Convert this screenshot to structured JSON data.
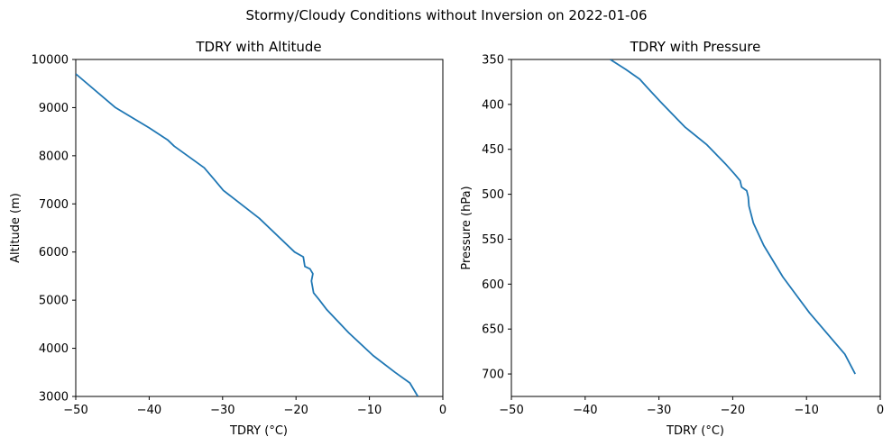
{
  "figure": {
    "suptitle": "Stormy/Cloudy Conditions without Inversion on 2022-01-06"
  },
  "colors": {
    "line": "#1f77b4",
    "axis": "#000000",
    "background": "#ffffff"
  },
  "chart_data": [
    {
      "type": "line",
      "title": "TDRY with Altitude",
      "xlabel": "TDRY (°C)",
      "ylabel": "Altitude (m)",
      "xlim": [
        -50,
        0
      ],
      "ylim": [
        3000,
        10000
      ],
      "y_inverted": false,
      "xticks": [
        "−50",
        "−40",
        "−30",
        "−20",
        "−10",
        "0"
      ],
      "yticks": [
        "3000",
        "4000",
        "5000",
        "6000",
        "7000",
        "8000",
        "9000",
        "10000"
      ],
      "series": [
        {
          "x": [
            -3.4,
            -4.5,
            -6.5,
            -9.5,
            -12.8,
            -15.8,
            -16.8,
            -17.6,
            -17.9,
            -17.7,
            -18.1,
            -18.8,
            -19,
            -20.2,
            -25,
            -29.9,
            -31.1,
            -32.5,
            -36.6,
            -37.5,
            -40,
            -44.6,
            -50
          ],
          "y": [
            3000,
            3280,
            3500,
            3850,
            4320,
            4800,
            5000,
            5150,
            5400,
            5550,
            5650,
            5700,
            5900,
            6000,
            6700,
            7280,
            7500,
            7750,
            8200,
            8330,
            8580,
            9000,
            9700
          ]
        }
      ]
    },
    {
      "type": "line",
      "title": "TDRY with Pressure",
      "xlabel": "TDRY (°C)",
      "ylabel": "Pressure (hPa)",
      "xlim": [
        -50,
        0
      ],
      "ylim": [
        725,
        350
      ],
      "y_inverted": true,
      "xticks": [
        "−50",
        "−40",
        "−30",
        "−20",
        "−10",
        "0"
      ],
      "yticks": [
        "350",
        "400",
        "450",
        "500",
        "550",
        "600",
        "650",
        "700"
      ],
      "series": [
        {
          "x": [
            -3.4,
            -4.8,
            -9.6,
            -13.2,
            -15.8,
            -17.2,
            -17.8,
            -17.9,
            -18.1,
            -18.8,
            -19,
            -19.7,
            -21,
            -23.5,
            -26.5,
            -29.8,
            -31.5,
            -32.6,
            -34.5,
            -36.6
          ],
          "y": [
            700,
            678,
            632,
            592,
            557,
            532,
            513,
            503,
            496,
            492,
            485,
            478,
            466,
            445,
            425,
            397,
            382,
            372,
            361,
            350
          ]
        }
      ]
    }
  ]
}
